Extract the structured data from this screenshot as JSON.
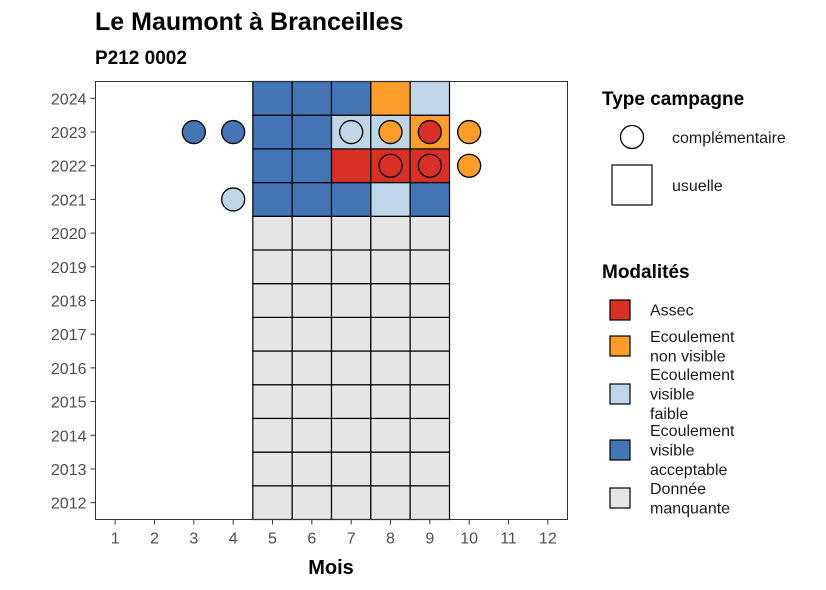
{
  "chart_data": {
    "type": "heatmap",
    "title": "Le Maumont à Branceilles",
    "subtitle": "P212 0002",
    "xlabel": "Mois",
    "ylabel": "",
    "x_ticks": [
      "1",
      "2",
      "3",
      "4",
      "5",
      "6",
      "7",
      "8",
      "9",
      "10",
      "11",
      "12"
    ],
    "y_ticks": [
      "2012",
      "2013",
      "2014",
      "2015",
      "2016",
      "2017",
      "2018",
      "2019",
      "2020",
      "2021",
      "2022",
      "2023",
      "2024"
    ],
    "xlim": [
      0.5,
      12.5
    ],
    "ylim": [
      2011.5,
      2024.5
    ],
    "modalites": [
      {
        "key": "assec",
        "label": "Assec",
        "color": "#d73027"
      },
      {
        "key": "nonvisible",
        "label": "Ecoulement non visible",
        "color": "#fc9d2c"
      },
      {
        "key": "faible",
        "label": "Ecoulement visible faible",
        "color": "#bfd6e8"
      },
      {
        "key": "acceptable",
        "label": "Ecoulement visible acceptable",
        "color": "#4575b4"
      },
      {
        "key": "manquante",
        "label": "Donnée manquante",
        "color": "#e5e5e5"
      }
    ],
    "campaign_types": [
      {
        "key": "complementaire",
        "label": "complémentaire",
        "shape": "circle"
      },
      {
        "key": "usuelle",
        "label": "usuelle",
        "shape": "square"
      }
    ],
    "usuelle": [
      {
        "year": 2012,
        "values": {
          "5": "manquante",
          "6": "manquante",
          "7": "manquante",
          "8": "manquante",
          "9": "manquante"
        }
      },
      {
        "year": 2013,
        "values": {
          "5": "manquante",
          "6": "manquante",
          "7": "manquante",
          "8": "manquante",
          "9": "manquante"
        }
      },
      {
        "year": 2014,
        "values": {
          "5": "manquante",
          "6": "manquante",
          "7": "manquante",
          "8": "manquante",
          "9": "manquante"
        }
      },
      {
        "year": 2015,
        "values": {
          "5": "manquante",
          "6": "manquante",
          "7": "manquante",
          "8": "manquante",
          "9": "manquante"
        }
      },
      {
        "year": 2016,
        "values": {
          "5": "manquante",
          "6": "manquante",
          "7": "manquante",
          "8": "manquante",
          "9": "manquante"
        }
      },
      {
        "year": 2017,
        "values": {
          "5": "manquante",
          "6": "manquante",
          "7": "manquante",
          "8": "manquante",
          "9": "manquante"
        }
      },
      {
        "year": 2018,
        "values": {
          "5": "manquante",
          "6": "manquante",
          "7": "manquante",
          "8": "manquante",
          "9": "manquante"
        }
      },
      {
        "year": 2019,
        "values": {
          "5": "manquante",
          "6": "manquante",
          "7": "manquante",
          "8": "manquante",
          "9": "manquante"
        }
      },
      {
        "year": 2020,
        "values": {
          "5": "manquante",
          "6": "manquante",
          "7": "manquante",
          "8": "manquante",
          "9": "manquante"
        }
      },
      {
        "year": 2021,
        "values": {
          "5": "acceptable",
          "6": "acceptable",
          "7": "acceptable",
          "8": "faible",
          "9": "acceptable"
        }
      },
      {
        "year": 2022,
        "values": {
          "5": "acceptable",
          "6": "acceptable",
          "7": "assec",
          "8": "assec",
          "9": "assec"
        }
      },
      {
        "year": 2023,
        "values": {
          "5": "acceptable",
          "6": "acceptable",
          "7": "faible",
          "8": "faible",
          "9": "nonvisible"
        }
      },
      {
        "year": 2024,
        "values": {
          "5": "acceptable",
          "6": "acceptable",
          "7": "acceptable",
          "8": "nonvisible",
          "9": "faible"
        }
      }
    ],
    "complementaire": [
      {
        "year": 2023,
        "month": 3,
        "value": "acceptable"
      },
      {
        "year": 2023,
        "month": 4,
        "value": "acceptable"
      },
      {
        "year": 2023,
        "month": 7,
        "value": "faible"
      },
      {
        "year": 2023,
        "month": 8,
        "value": "nonvisible"
      },
      {
        "year": 2023,
        "month": 9,
        "value": "assec"
      },
      {
        "year": 2023,
        "month": 10,
        "value": "nonvisible"
      },
      {
        "year": 2022,
        "month": 8,
        "value": "assec"
      },
      {
        "year": 2022,
        "month": 9,
        "value": "assec"
      },
      {
        "year": 2022,
        "month": 10,
        "value": "nonvisible"
      },
      {
        "year": 2021,
        "month": 4,
        "value": "faible"
      }
    ],
    "legend": {
      "campaign_title": "Type campagne",
      "modalites_title": "Modalités",
      "placement": "right"
    }
  }
}
